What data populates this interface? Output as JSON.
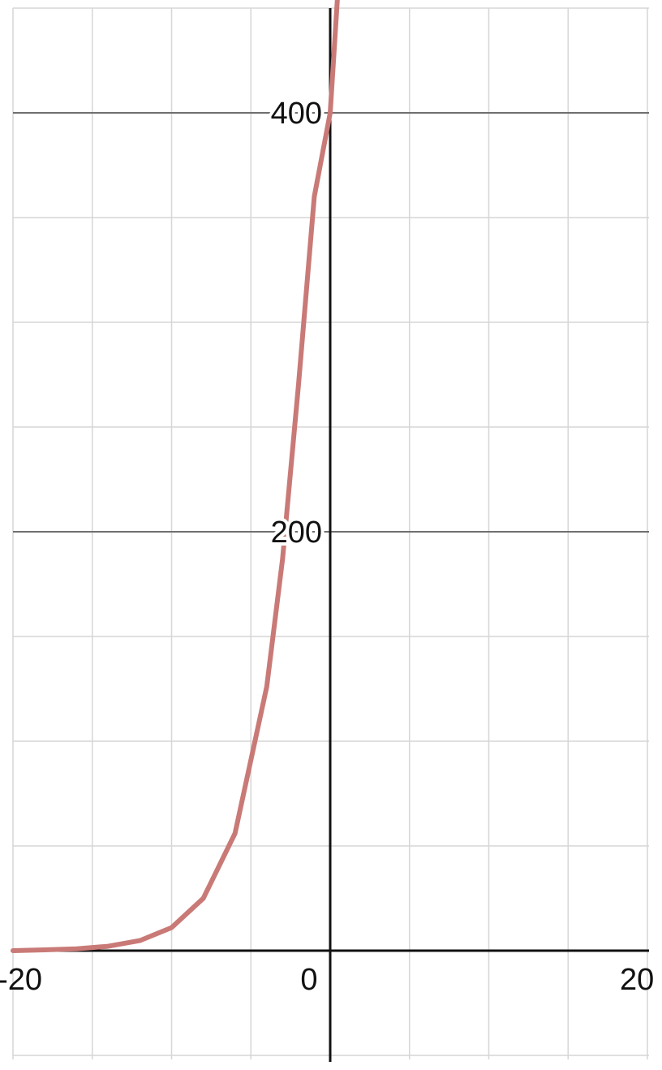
{
  "chart_data": {
    "type": "line",
    "title": "",
    "xlabel": "",
    "ylabel": "",
    "xlim": [
      -20,
      20
    ],
    "ylim": [
      -50,
      450
    ],
    "grid": true,
    "legend": "none",
    "x_ticks": [
      {
        "value": -20,
        "label": "-20"
      },
      {
        "value": 0,
        "label": "0"
      },
      {
        "value": 20,
        "label": "20"
      }
    ],
    "y_ticks": [
      {
        "value": 200,
        "label": "200"
      },
      {
        "value": 400,
        "label": "400"
      }
    ],
    "series": [
      {
        "color": "#c97a77",
        "x": [
          -20,
          -18,
          -16,
          -14,
          -12,
          -10,
          -8,
          -6,
          -4,
          -3,
          -2,
          -1,
          0,
          0.5
        ],
        "y": [
          0,
          0.4,
          0.9,
          2.1,
          4.8,
          11,
          25,
          56,
          126,
          187,
          270,
          360,
          400,
          460
        ]
      }
    ]
  }
}
